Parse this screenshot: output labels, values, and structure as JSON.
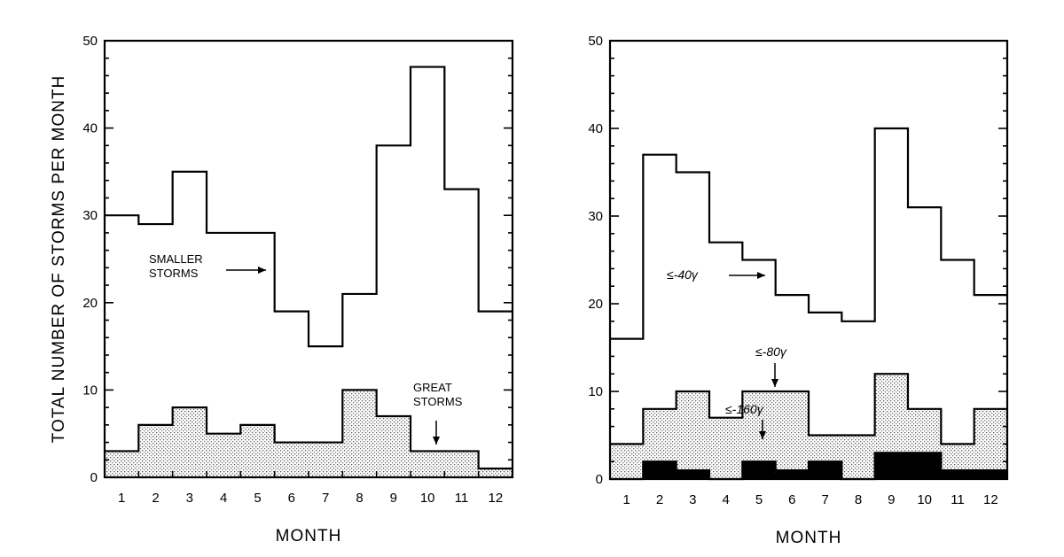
{
  "chart_data": [
    {
      "type": "histogram-step",
      "title": "",
      "xlabel": "MONTH",
      "ylabel": "TOTAL NUMBER OF STORMS PER MONTH",
      "categories": [
        "1",
        "2",
        "3",
        "4",
        "5",
        "6",
        "7",
        "8",
        "9",
        "10",
        "11",
        "12"
      ],
      "ylim": [
        0,
        50
      ],
      "yticks": [
        "0",
        "10",
        "20",
        "30",
        "40",
        "50"
      ],
      "grid": false,
      "series": [
        {
          "name": "SMALLER STORMS",
          "fill": "none",
          "values": [
            30,
            29,
            35,
            28,
            28,
            19,
            15,
            21,
            38,
            47,
            33,
            19
          ]
        },
        {
          "name": "GREAT STORMS",
          "fill": "stipple",
          "values": [
            3,
            6,
            8,
            5,
            6,
            4,
            4,
            10,
            7,
            3,
            3,
            1
          ]
        }
      ],
      "annotations": [
        {
          "text_lines": [
            "SMALLER",
            "STORMS"
          ],
          "points_to_month": 6,
          "value": 28
        },
        {
          "text_lines": [
            "GREAT",
            "STORMS"
          ],
          "points_to_month": 10,
          "value": 3
        }
      ]
    },
    {
      "type": "histogram-step",
      "title": "",
      "xlabel": "MONTH",
      "ylabel": "",
      "categories": [
        "1",
        "2",
        "3",
        "4",
        "5",
        "6",
        "7",
        "8",
        "9",
        "10",
        "11",
        "12"
      ],
      "ylim": [
        0,
        50
      ],
      "yticks": [
        "0",
        "10",
        "20",
        "30",
        "40",
        "50"
      ],
      "grid": false,
      "series": [
        {
          "name": "≤-40γ",
          "fill": "none",
          "values": [
            16,
            37,
            35,
            27,
            25,
            21,
            19,
            18,
            40,
            31,
            25,
            21
          ]
        },
        {
          "name": "≤-80γ",
          "fill": "stipple",
          "values": [
            4,
            8,
            10,
            7,
            10,
            10,
            5,
            5,
            12,
            8,
            4,
            8
          ]
        },
        {
          "name": "≤-160γ",
          "fill": "solid",
          "values": [
            0,
            2,
            1,
            0,
            2,
            1,
            2,
            0,
            3,
            3,
            1,
            1
          ]
        }
      ],
      "annotations": [
        {
          "text_lines": [
            "≤-40γ"
          ],
          "points_to_month": 6,
          "value": 23
        },
        {
          "text_lines": [
            "≤-80γ"
          ],
          "points_to_month": 6,
          "value": 10
        },
        {
          "text_lines": [
            "≤-160γ"
          ],
          "points_to_month": 5,
          "value": 2
        }
      ]
    }
  ]
}
